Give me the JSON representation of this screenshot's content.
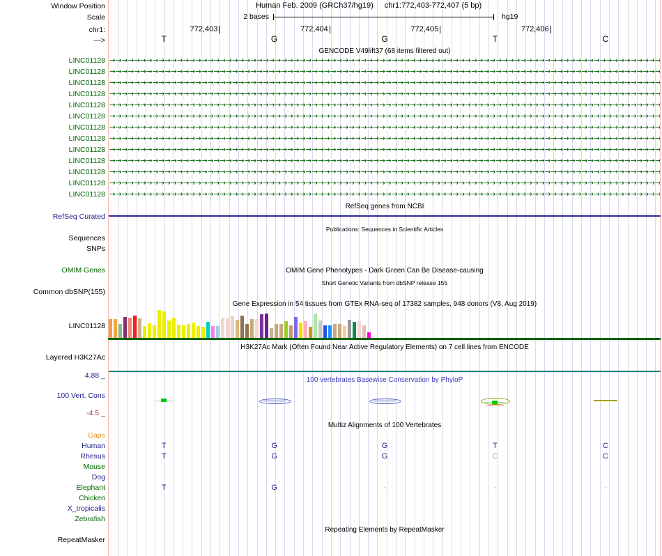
{
  "header": {
    "assembly": "Human Feb. 2009 (GRCh37/hg19)",
    "position": "chr1:772,403-772,407 (5 bp)"
  },
  "labels": {
    "window_position": "Window Position",
    "scale": "Scale",
    "chrom": "chr1:",
    "strand": "--->"
  },
  "scale_bar": {
    "label": "2 bases",
    "genome": "hg19"
  },
  "ruler": {
    "ticks": [
      "772,403",
      "772,404",
      "772,405",
      "772,406"
    ]
  },
  "sequence": {
    "bases": [
      "T",
      "G",
      "G",
      "T",
      "C"
    ]
  },
  "gencode": {
    "title": "GENCODE V49lift37 (68 items filtered out)",
    "arrow_glyph": "→",
    "genes": [
      "LINC01128",
      "LINC01128",
      "LINC01128",
      "LINC01128",
      "LINC01128",
      "LINC01128",
      "LINC01128",
      "LINC01128",
      "LINC01128",
      "LINC01128",
      "LINC01128",
      "LINC01128",
      "LINC01128"
    ]
  },
  "refseq": {
    "title": "RefSeq genes from NCBI",
    "label": "RefSeq Curated",
    "line_color": "#2A2A9A"
  },
  "publications": {
    "title": "Publications: Sequences in Scientific Articles"
  },
  "sequences_track": {
    "label": "Sequences"
  },
  "snps_track": {
    "label": "SNPs"
  },
  "omim": {
    "title": "OMIM Gene Phenotypes - Dark Green Can Be Disease-causing",
    "label": "OMIM Genes",
    "color": "#006400"
  },
  "dbsnp": {
    "title": "Short Genetic Variants from dbSNP release 155",
    "label": "Common dbSNP(155)"
  },
  "gtex": {
    "title": "Gene Expression in 54 tissues from GTEx RNA-seq of 17382 samples, 948 donors (V8, Aug 2019)",
    "label": "LINC01128",
    "baseline_color": "#006400",
    "bars": [
      {
        "c": "#F0A04B",
        "h": 27
      },
      {
        "c": "#F2A43F",
        "h": 27
      },
      {
        "c": "#8FBC8F",
        "h": 20
      },
      {
        "c": "#84316B",
        "h": 30
      },
      {
        "c": "#F08575",
        "h": 29
      },
      {
        "c": "#FF1A1A",
        "h": 32
      },
      {
        "c": "#CDB288",
        "h": 28
      },
      {
        "c": "#EDED00",
        "h": 17
      },
      {
        "c": "#EDED00",
        "h": 21
      },
      {
        "c": "#EDED00",
        "h": 18
      },
      {
        "c": "#EDED00",
        "h": 40
      },
      {
        "c": "#EDED00",
        "h": 38
      },
      {
        "c": "#EDED00",
        "h": 25
      },
      {
        "c": "#EDED00",
        "h": 29
      },
      {
        "c": "#EDED00",
        "h": 19
      },
      {
        "c": "#EDED00",
        "h": 18
      },
      {
        "c": "#EDED00",
        "h": 20
      },
      {
        "c": "#EDED00",
        "h": 22
      },
      {
        "c": "#EDED00",
        "h": 17
      },
      {
        "c": "#EDED00",
        "h": 16
      },
      {
        "c": "#00CED1",
        "h": 23
      },
      {
        "c": "#EE82EE",
        "h": 17
      },
      {
        "c": "#A8CEE0",
        "h": 17
      },
      {
        "c": "#F2D6D0",
        "h": 29
      },
      {
        "c": "#F2D6D0",
        "h": 29
      },
      {
        "c": "#EDCFC9",
        "h": 32
      },
      {
        "c": "#D9B77E",
        "h": 26
      },
      {
        "c": "#8B7355",
        "h": 32
      },
      {
        "c": "#96714E",
        "h": 20
      },
      {
        "c": "#C9A87C",
        "h": 27
      },
      {
        "c": "#F2D6D0",
        "h": 27
      },
      {
        "c": "#7A2F9B",
        "h": 34
      },
      {
        "c": "#6B2290",
        "h": 35
      },
      {
        "c": "#BCB49C",
        "h": 14
      },
      {
        "c": "#C9A87C",
        "h": 20
      },
      {
        "c": "#C9A87C",
        "h": 20
      },
      {
        "c": "#9ACD32",
        "h": 24
      },
      {
        "c": "#C0A060",
        "h": 18
      },
      {
        "c": "#7B68EE",
        "h": 30
      },
      {
        "c": "#FFD700",
        "h": 22
      },
      {
        "c": "#FFB0C0",
        "h": 24
      },
      {
        "c": "#CC9900",
        "h": 16
      },
      {
        "c": "#AAE8A0",
        "h": 35
      },
      {
        "c": "#C8C8C8",
        "h": 25
      },
      {
        "c": "#2255DD",
        "h": 18
      },
      {
        "c": "#1E90FF",
        "h": 18
      },
      {
        "c": "#C9A87C",
        "h": 20
      },
      {
        "c": "#C9A87C",
        "h": 20
      },
      {
        "c": "#F5CBA0",
        "h": 17
      },
      {
        "c": "#999999",
        "h": 26
      },
      {
        "c": "#0E8A50",
        "h": 23
      },
      {
        "c": "#F2D6D0",
        "h": 24
      },
      {
        "c": "#E3BDBD",
        "h": 18
      },
      {
        "c": "#FF00DD",
        "h": 8
      }
    ]
  },
  "h3k27ac": {
    "title": "H3K27Ac Mark (Often Found Near Active Regulatory Elements) on 7 cell lines from ENCODE",
    "label": "Layered H3K27Ac",
    "baseline_color": "#1E7D7D"
  },
  "phylop": {
    "title": "100 vertebrates Basewise Conservation by PhyloP",
    "label": "100 Vert. Cons",
    "max_label": "4.88 _",
    "min_label": "-4.5 _",
    "title_color": "#3B3BB8",
    "marks": [
      {
        "shape": "green-line-dot",
        "base": 1
      },
      {
        "shape": "blue-lens",
        "base": 2
      },
      {
        "shape": "blue-lens",
        "base": 3
      },
      {
        "shape": "olive-lens-dot",
        "base": 4
      },
      {
        "shape": "olive-line",
        "base": 5
      }
    ]
  },
  "multiz": {
    "title": "Multiz Alignments of 100 Vertebrates",
    "rows": [
      {
        "label": "Gaps",
        "color": "#E0912F",
        "bases": []
      },
      {
        "label": "Human",
        "color": "#22228B",
        "bases": [
          {
            "t": "T"
          },
          {
            "t": "G"
          },
          {
            "t": "G"
          },
          {
            "t": "T"
          },
          {
            "t": "C"
          }
        ]
      },
      {
        "label": "Rhesus",
        "color": "#22228B",
        "bases": [
          {
            "t": "T"
          },
          {
            "t": "G"
          },
          {
            "t": "G"
          },
          {
            "t": "C",
            "dim": true
          },
          {
            "t": "C"
          }
        ]
      },
      {
        "label": "Mouse",
        "color": "#006400",
        "bases": []
      },
      {
        "label": "Dog",
        "color": "#22228B",
        "bases": []
      },
      {
        "label": "Elephant",
        "color": "#006400",
        "bases": [
          {
            "t": "T"
          },
          {
            "t": "G"
          },
          {
            "t": "-",
            "dim": true
          },
          {
            "t": "-",
            "dim": true
          },
          {
            "t": "-",
            "dim": true
          }
        ]
      },
      {
        "label": "Chicken",
        "color": "#006400",
        "bases": []
      },
      {
        "label": "X_tropicalis",
        "color": "#22228B",
        "bases": []
      },
      {
        "label": "Zebrafish",
        "color": "#006400",
        "bases": []
      }
    ]
  },
  "repeatmasker": {
    "title": "Repeating Elements by RepeatMasker",
    "label": "RepeatMasker"
  }
}
